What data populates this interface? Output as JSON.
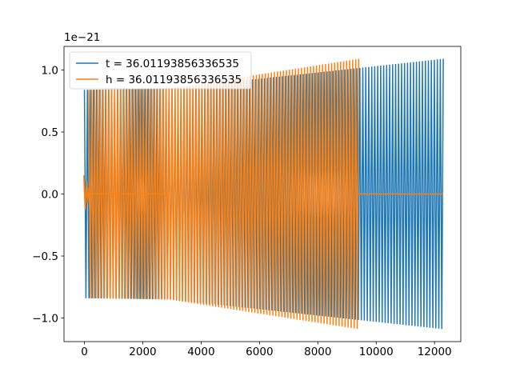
{
  "chart_data": {
    "type": "line",
    "scale_label": "1e−21",
    "xlim": [
      -700,
      12900
    ],
    "ylim": [
      -1.19,
      1.19
    ],
    "x_ticks": [
      {
        "value": 0,
        "label": "0"
      },
      {
        "value": 2000,
        "label": "2000"
      },
      {
        "value": 4000,
        "label": "4000"
      },
      {
        "value": 6000,
        "label": "6000"
      },
      {
        "value": 8000,
        "label": "8000"
      },
      {
        "value": 10000,
        "label": "10000"
      },
      {
        "value": 12000,
        "label": "12000"
      }
    ],
    "y_ticks": [
      {
        "value": 1.0,
        "label": "1.0"
      },
      {
        "value": 0.5,
        "label": "0.5"
      },
      {
        "value": 0.0,
        "label": "0.0"
      },
      {
        "value": -0.5,
        "label": "−0.5"
      },
      {
        "value": -1.0,
        "label": "−1.0"
      }
    ],
    "legend_position": "top-left",
    "series": [
      {
        "name": "t = 36.01193856336535",
        "color": "#1f77b4",
        "segments": [
          {
            "kind": "oscillation",
            "x_start": 0,
            "x_end": 2900,
            "amplitude_start": 0.84,
            "amplitude_end": 0.85,
            "cycles": 28
          },
          {
            "kind": "oscillation",
            "x_start": 2900,
            "x_end": 12300,
            "amplitude_start": 0.85,
            "amplitude_end": 1.09,
            "cycles": 92
          }
        ]
      },
      {
        "name": "h = 36.01193856336535",
        "color": "#ff7f0e",
        "segments": [
          {
            "kind": "oscillation",
            "x_start": -20,
            "x_end": 150,
            "amplitude_start": 0.15,
            "amplitude_end": 0.05,
            "cycles": 2
          },
          {
            "kind": "flat",
            "x_start": 150,
            "x_end": 2900,
            "value": 0.0
          },
          {
            "kind": "oscillation",
            "x_start": 150,
            "x_end": 2900,
            "amplitude_start": 0.84,
            "amplitude_end": 0.85,
            "cycles": 28
          },
          {
            "kind": "oscillation",
            "x_start": 2900,
            "x_end": 9400,
            "amplitude_start": 0.85,
            "amplitude_end": 1.09,
            "cycles": 63
          },
          {
            "kind": "flat",
            "x_start": 9400,
            "x_end": 12300,
            "value": 0.0
          }
        ]
      }
    ]
  }
}
